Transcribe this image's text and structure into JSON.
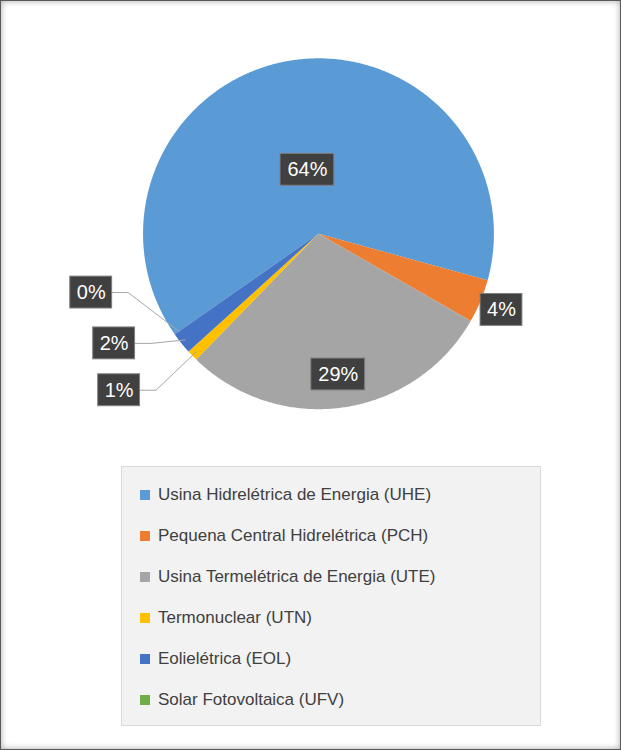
{
  "chart_data": {
    "type": "pie",
    "categories": [
      "Usina Hidrelétrica de Energia (UHE)",
      "Pequena Central Hidrelétrica (PCH)",
      "Usina Termelétrica de Energia (UTE)",
      "Termonuclear (UTN)",
      "Eolielétrica (EOL)",
      "Solar Fotovoltaica (UFV)"
    ],
    "values": [
      64,
      4,
      29,
      1,
      2,
      0
    ],
    "value_labels": [
      "64%",
      "4%",
      "29%",
      "1%",
      "2%",
      "0%"
    ],
    "colors": [
      "#5b9bd5",
      "#ed7d31",
      "#a5a5a5",
      "#ffc000",
      "#4472c4",
      "#70ad47"
    ],
    "data_labels": true,
    "legend": "bottom"
  }
}
